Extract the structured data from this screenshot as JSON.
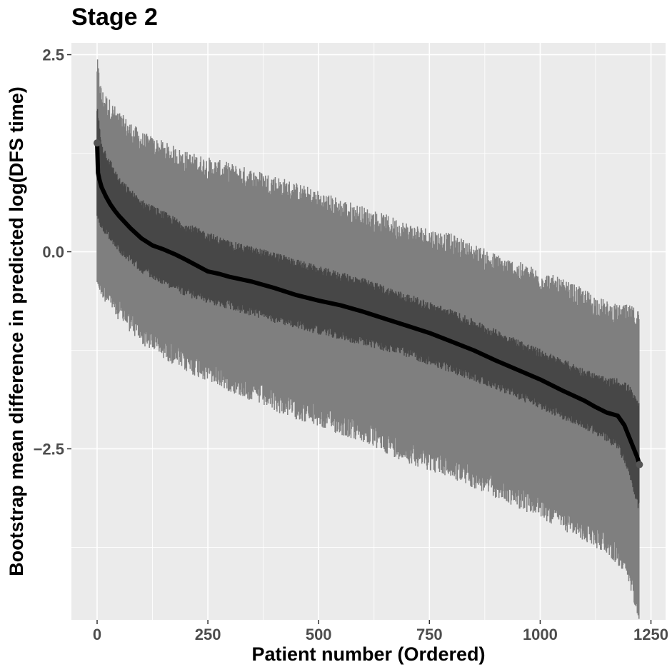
{
  "chart_data": {
    "type": "line",
    "title": "Stage 2",
    "xlabel": "Patient number (Ordered)",
    "ylabel": "Bootstrap mean difference in predicted log(DFS time)",
    "xlim": [
      -58,
      1283
    ],
    "ylim": [
      -4.67,
      2.65
    ],
    "x_ticks": [
      0,
      250,
      500,
      750,
      1000,
      1250
    ],
    "x_tick_labels": [
      "0",
      "250",
      "500",
      "750",
      "1000",
      "1250"
    ],
    "y_ticks": [
      2.5,
      0.0,
      -2.5
    ],
    "y_tick_labels": [
      "2.5",
      "0.0",
      "−2.5"
    ],
    "grid": true,
    "n_patients": 1224,
    "series": [
      {
        "role": "mean",
        "x": [
          0,
          2,
          5,
          10,
          20,
          30,
          40,
          50,
          75,
          100,
          125,
          150,
          175,
          200,
          250,
          275,
          300,
          350,
          375,
          400,
          450,
          500,
          550,
          600,
          650,
          700,
          750,
          800,
          850,
          900,
          950,
          1000,
          1050,
          1100,
          1125,
          1150,
          1175,
          1190,
          1200,
          1210,
          1220,
          1224
        ],
        "y": [
          1.38,
          1.0,
          0.92,
          0.82,
          0.7,
          0.6,
          0.52,
          0.45,
          0.3,
          0.17,
          0.08,
          0.03,
          -0.03,
          -0.1,
          -0.25,
          -0.28,
          -0.32,
          -0.38,
          -0.42,
          -0.46,
          -0.55,
          -0.62,
          -0.68,
          -0.76,
          -0.85,
          -0.94,
          -1.03,
          -1.14,
          -1.25,
          -1.38,
          -1.5,
          -1.62,
          -1.76,
          -1.89,
          -1.97,
          -2.04,
          -2.08,
          -2.2,
          -2.34,
          -2.48,
          -2.62,
          -2.7
        ]
      },
      {
        "role": "inner-band",
        "x": [
          0,
          10,
          50,
          100,
          200,
          300,
          400,
          500,
          600,
          700,
          800,
          900,
          1000,
          1100,
          1150,
          1175,
          1200,
          1224
        ],
        "lower": [
          0.55,
          0.4,
          0.1,
          -0.15,
          -0.45,
          -0.62,
          -0.78,
          -0.93,
          -1.07,
          -1.22,
          -1.42,
          -1.63,
          -1.88,
          -2.13,
          -2.3,
          -2.38,
          -2.7,
          -3.2
        ],
        "upper": [
          1.75,
          1.28,
          0.82,
          0.55,
          0.25,
          0.02,
          -0.12,
          -0.3,
          -0.45,
          -0.65,
          -0.85,
          -1.1,
          -1.35,
          -1.6,
          -1.72,
          -1.72,
          -1.8,
          -2.05
        ]
      },
      {
        "role": "outer-band",
        "x": [
          0,
          10,
          50,
          100,
          200,
          300,
          400,
          500,
          600,
          700,
          800,
          900,
          1000,
          1100,
          1150,
          1175,
          1200,
          1224
        ],
        "lower": [
          -0.2,
          -0.3,
          -0.6,
          -0.9,
          -1.25,
          -1.5,
          -1.75,
          -1.95,
          -2.15,
          -2.4,
          -2.6,
          -2.85,
          -3.1,
          -3.4,
          -3.55,
          -3.7,
          -3.95,
          -4.4
        ],
        "upper": [
          2.2,
          1.8,
          1.5,
          1.25,
          1.0,
          0.85,
          0.7,
          0.5,
          0.3,
          0.1,
          -0.05,
          -0.3,
          -0.5,
          -0.75,
          -0.9,
          -0.95,
          -0.95,
          -1.0
        ]
      }
    ]
  }
}
